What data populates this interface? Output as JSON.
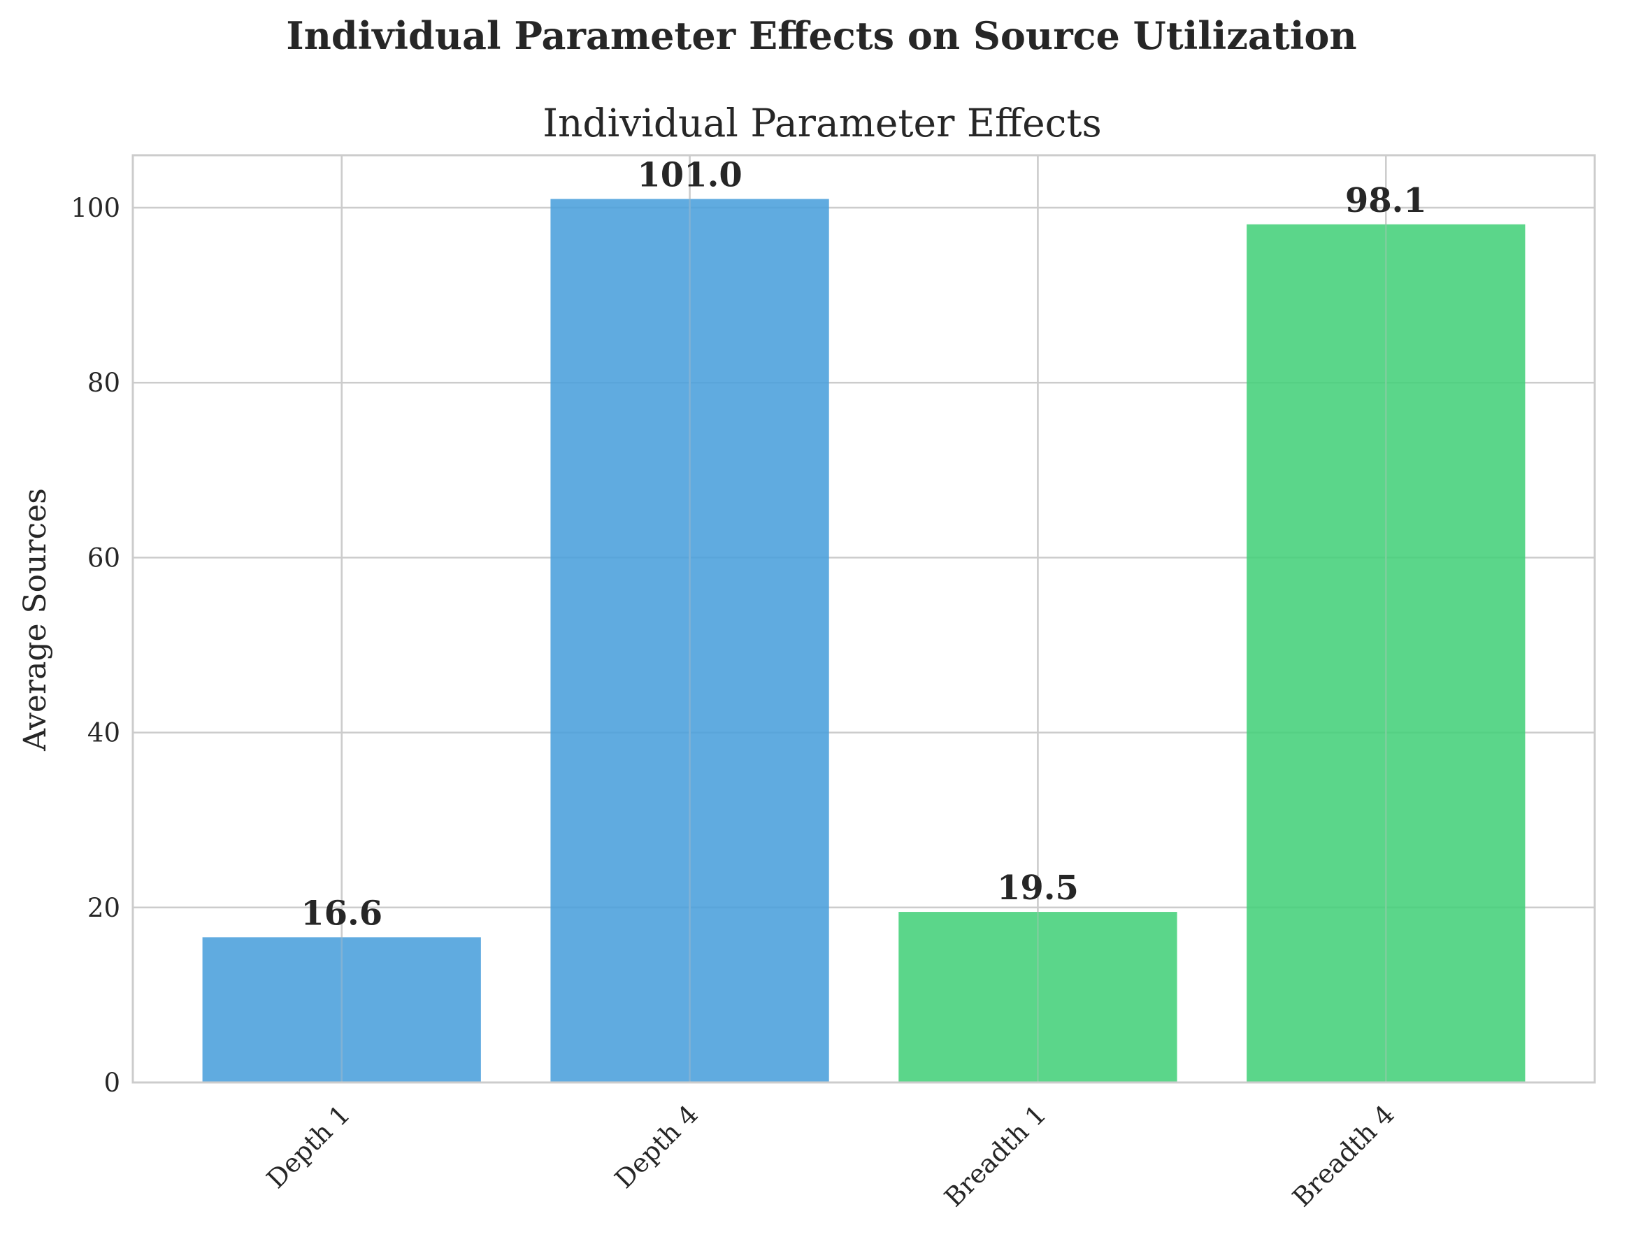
{
  "suptitle": "Individual Parameter Effects on Source Utilization",
  "chart_data": {
    "type": "bar",
    "title": "Individual Parameter Effects",
    "xlabel": "",
    "ylabel": "Average Sources",
    "categories": [
      "Depth 1",
      "Depth 4",
      "Breadth 1",
      "Breadth 4"
    ],
    "values": [
      16.6,
      101.0,
      19.5,
      98.1
    ],
    "value_labels": [
      "16.6",
      "101.0",
      "19.5",
      "98.1"
    ],
    "bar_colors": [
      "#4a9fdc",
      "#4a9fdc",
      "#44d07a",
      "#44d07a"
    ],
    "ylim": [
      0,
      106
    ],
    "yticks": [
      0,
      20,
      40,
      60,
      80,
      100
    ],
    "grid": true,
    "xtick_rotation": 45
  },
  "colors": {
    "grid": "#cccccc",
    "spine": "#cccccc",
    "text": "#262626"
  }
}
